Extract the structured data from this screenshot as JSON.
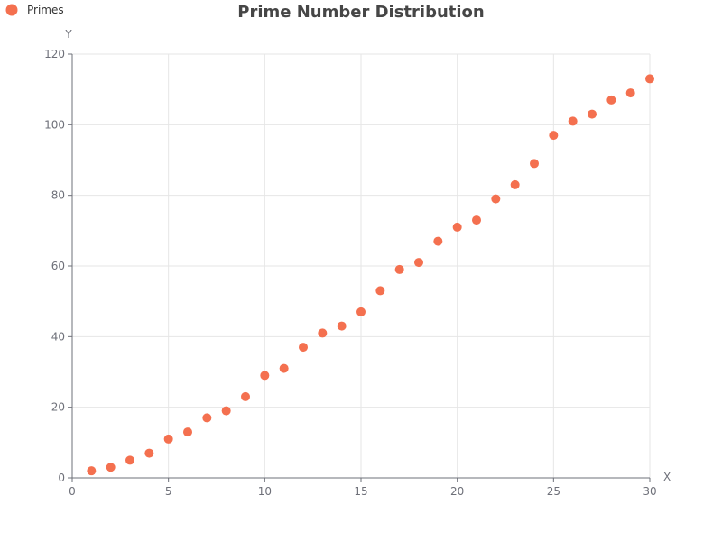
{
  "colors": {
    "series": "#f4704f",
    "grid": "#e6e6e6",
    "axis_line": "#6e7079",
    "text": "#6e7079",
    "title": "#464646"
  },
  "chart_data": {
    "type": "scatter",
    "title": "Prime Number Distribution",
    "xlabel": "X",
    "ylabel": "Y",
    "xlim": [
      0,
      30
    ],
    "ylim": [
      0,
      120
    ],
    "x_ticks": [
      0,
      5,
      10,
      15,
      20,
      25,
      30
    ],
    "y_ticks": [
      0,
      20,
      40,
      60,
      80,
      100,
      120
    ],
    "grid": true,
    "legend_position": "top-left",
    "series": [
      {
        "name": "Primes",
        "color": "#f4704f",
        "points": [
          [
            1,
            2
          ],
          [
            2,
            3
          ],
          [
            3,
            5
          ],
          [
            4,
            7
          ],
          [
            5,
            11
          ],
          [
            6,
            13
          ],
          [
            7,
            17
          ],
          [
            8,
            19
          ],
          [
            9,
            23
          ],
          [
            10,
            29
          ],
          [
            11,
            31
          ],
          [
            12,
            37
          ],
          [
            13,
            41
          ],
          [
            14,
            43
          ],
          [
            15,
            47
          ],
          [
            16,
            53
          ],
          [
            17,
            59
          ],
          [
            18,
            61
          ],
          [
            19,
            67
          ],
          [
            20,
            71
          ],
          [
            21,
            73
          ],
          [
            22,
            79
          ],
          [
            23,
            83
          ],
          [
            24,
            89
          ],
          [
            25,
            97
          ],
          [
            26,
            101
          ],
          [
            27,
            103
          ],
          [
            28,
            107
          ],
          [
            29,
            109
          ],
          [
            30,
            113
          ]
        ]
      }
    ]
  }
}
